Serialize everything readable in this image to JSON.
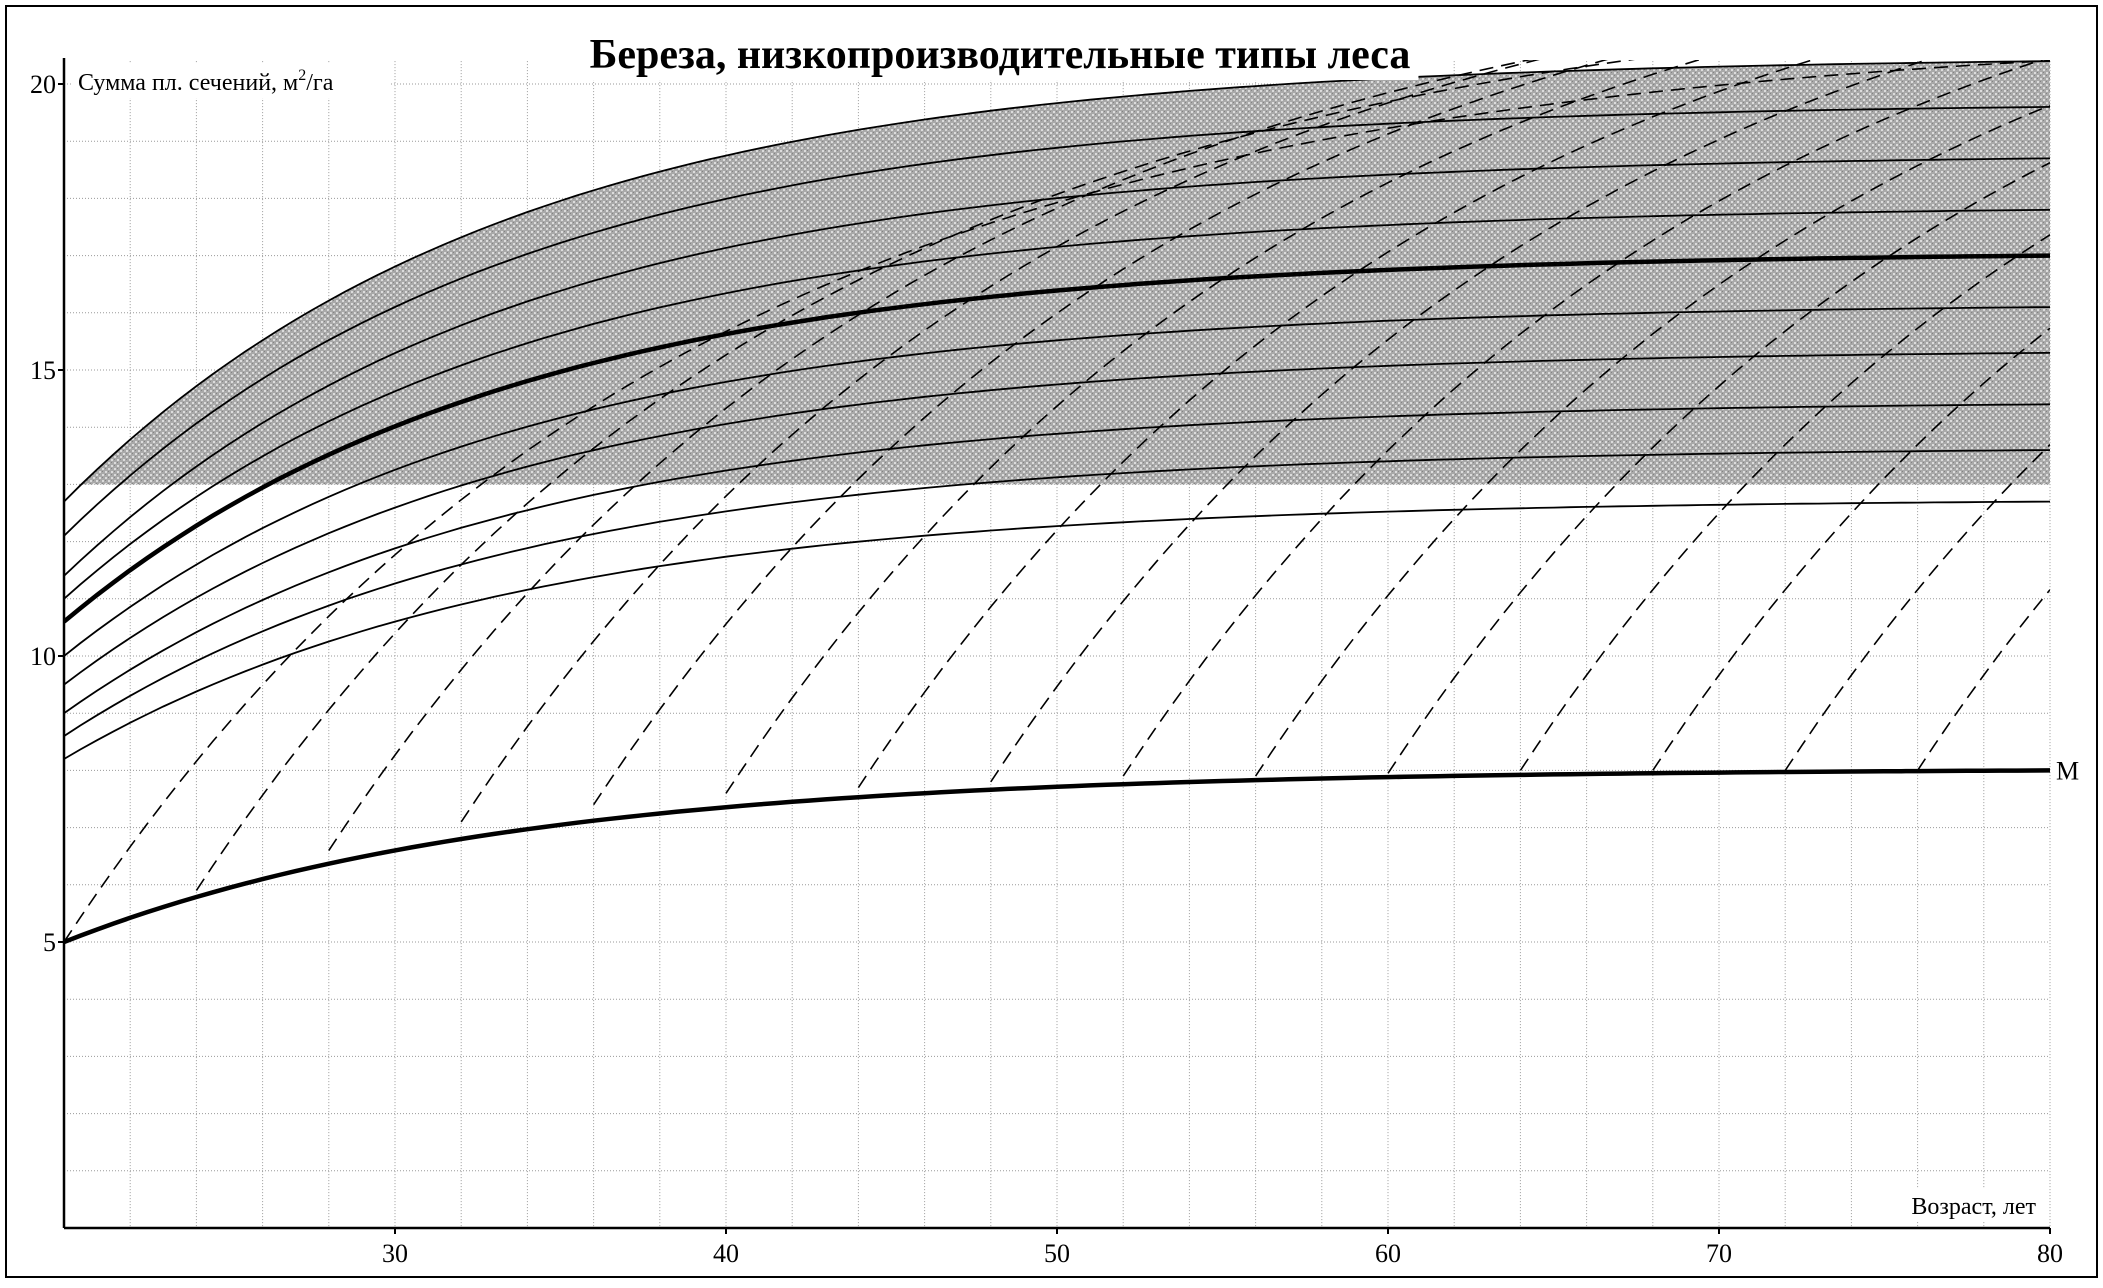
{
  "chart_data": {
    "type": "line",
    "title": "Береза, низкопроизводительные типы леса",
    "xlabel": "Возраст, лет",
    "ylabel": "Сумма пл. сечений, м²/га",
    "ylabel_parts": [
      "Сумма пл. сечений, м",
      "2",
      "/га"
    ],
    "xlim": [
      20,
      80
    ],
    "ylim": [
      0,
      20.4
    ],
    "x_ticks": [
      30,
      40,
      50,
      60,
      70,
      80
    ],
    "y_ticks": [
      5,
      10,
      15,
      20
    ],
    "x_tick_labels": [
      "30",
      "40",
      "50",
      "60",
      "70",
      "80"
    ],
    "y_tick_labels": [
      "5",
      "10",
      "15",
      "20"
    ],
    "grid": true,
    "minor_grid_step": {
      "x": 2,
      "y": 1
    },
    "shaded_region": {
      "y_bottom": 13.0,
      "y_top_at_x80": 20.4
    },
    "solid_curves": [
      {
        "y20": 12.7,
        "y80": 20.4
      },
      {
        "y20": 12.1,
        "y80": 19.6
      },
      {
        "y20": 11.4,
        "y80": 18.7
      },
      {
        "y20": 11.0,
        "y80": 17.8
      },
      {
        "y20": 10.6,
        "y80": 17.0,
        "bold": true
      },
      {
        "y20": 10.0,
        "y80": 16.1
      },
      {
        "y20": 9.5,
        "y80": 15.3
      },
      {
        "y20": 9.0,
        "y80": 14.4
      },
      {
        "y20": 8.6,
        "y80": 13.6
      },
      {
        "y20": 8.2,
        "y80": 12.7
      },
      {
        "y20": 5.0,
        "y80": 8.0,
        "bold": true,
        "label": "M"
      }
    ],
    "dashed_curves": [
      {
        "x0": 20,
        "y0": 5.0
      },
      {
        "x0": 24,
        "y0": 5.9
      },
      {
        "x0": 28,
        "y0": 6.6
      },
      {
        "x0": 32,
        "y0": 7.1
      },
      {
        "x0": 36,
        "y0": 7.4
      },
      {
        "x0": 40,
        "y0": 7.6
      },
      {
        "x0": 44,
        "y0": 7.7
      },
      {
        "x0": 48,
        "y0": 7.8
      },
      {
        "x0": 52,
        "y0": 7.9
      },
      {
        "x0": 56,
        "y0": 7.9
      },
      {
        "x0": 60,
        "y0": 7.95
      },
      {
        "x0": 64,
        "y0": 8.0
      },
      {
        "x0": 68,
        "y0": 8.0
      },
      {
        "x0": 72,
        "y0": 8.0
      },
      {
        "x0": 76,
        "y0": 8.0
      }
    ],
    "curve_label": "M"
  }
}
